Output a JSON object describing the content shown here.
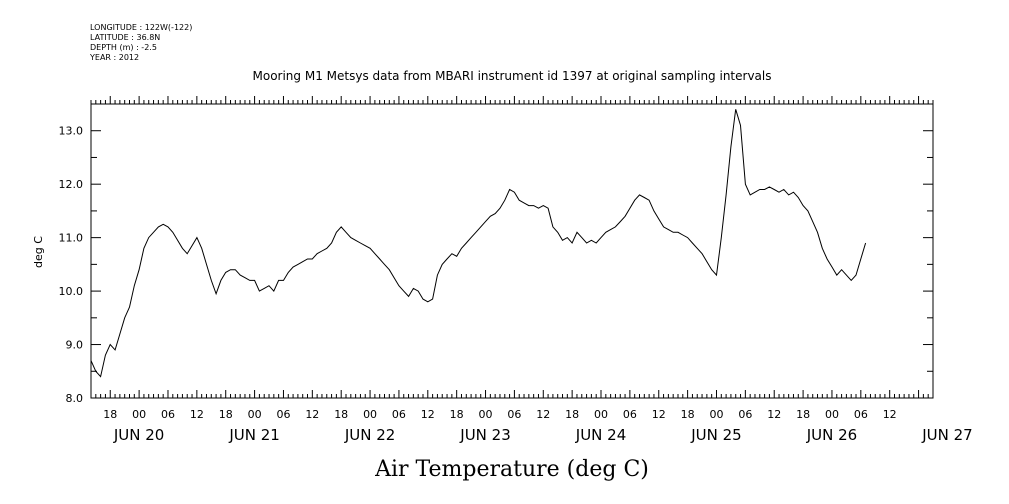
{
  "header": {
    "longitude": "LONGITUDE : 122W(-122)",
    "latitude": "LATITUDE : 36.8N",
    "depth": "DEPTH (m) : -2.5",
    "year": "YEAR : 2012"
  },
  "chart_data": {
    "type": "line",
    "title": "Mooring M1 Metsys data from MBARI instrument id 1397 at original sampling intervals",
    "ylabel": "deg C",
    "xlabel": "",
    "caption": "Air Temperature (deg C)",
    "ylim": [
      8.0,
      13.5
    ],
    "xlim_hours_from_jun20": [
      -10,
      165
    ],
    "yticks": [
      "8.0",
      "9.0",
      "10.0",
      "11.0",
      "12.0",
      "13.0"
    ],
    "xtick_labels": [
      "18",
      "00",
      "06",
      "12",
      "18",
      "00",
      "06",
      "12",
      "18",
      "00",
      "06",
      "12",
      "18",
      "00",
      "06",
      "12",
      "18",
      "00",
      "06",
      "12",
      "18",
      "00",
      "06",
      "12",
      "18",
      "00",
      "06",
      "12"
    ],
    "day_labels": [
      "JUN 20",
      "JUN 21",
      "JUN 22",
      "JUN 23",
      "JUN 24",
      "JUN 25",
      "JUN 26",
      "JUN 27"
    ],
    "grid": false,
    "series": [
      {
        "points": [
          [
            -10,
            8.7
          ],
          [
            -9,
            8.5
          ],
          [
            -8,
            8.4
          ],
          [
            -7,
            8.8
          ],
          [
            -6,
            9.0
          ],
          [
            -5,
            8.9
          ],
          [
            -4,
            9.2
          ],
          [
            -3,
            9.5
          ],
          [
            -2,
            9.7
          ],
          [
            -1,
            10.1
          ],
          [
            0,
            10.4
          ],
          [
            1,
            10.8
          ],
          [
            2,
            11.0
          ],
          [
            3,
            11.1
          ],
          [
            4,
            11.2
          ],
          [
            5,
            11.25
          ],
          [
            6,
            11.2
          ],
          [
            7,
            11.1
          ],
          [
            8,
            10.95
          ],
          [
            9,
            10.8
          ],
          [
            10,
            10.7
          ],
          [
            11,
            10.85
          ],
          [
            12,
            11.0
          ],
          [
            13,
            10.8
          ],
          [
            14,
            10.5
          ],
          [
            15,
            10.2
          ],
          [
            16,
            9.95
          ],
          [
            17,
            10.2
          ],
          [
            18,
            10.35
          ],
          [
            19,
            10.4
          ],
          [
            20,
            10.4
          ],
          [
            21,
            10.3
          ],
          [
            22,
            10.25
          ],
          [
            23,
            10.2
          ],
          [
            24,
            10.2
          ],
          [
            25,
            10.0
          ],
          [
            26,
            10.05
          ],
          [
            27,
            10.1
          ],
          [
            28,
            10.0
          ],
          [
            29,
            10.2
          ],
          [
            30,
            10.2
          ],
          [
            31,
            10.35
          ],
          [
            32,
            10.45
          ],
          [
            33,
            10.5
          ],
          [
            34,
            10.55
          ],
          [
            35,
            10.6
          ],
          [
            36,
            10.6
          ],
          [
            37,
            10.7
          ],
          [
            38,
            10.75
          ],
          [
            39,
            10.8
          ],
          [
            40,
            10.9
          ],
          [
            41,
            11.1
          ],
          [
            42,
            11.2
          ],
          [
            43,
            11.1
          ],
          [
            44,
            11.0
          ],
          [
            45,
            10.95
          ],
          [
            46,
            10.9
          ],
          [
            47,
            10.85
          ],
          [
            48,
            10.8
          ],
          [
            49,
            10.7
          ],
          [
            50,
            10.6
          ],
          [
            51,
            10.5
          ],
          [
            52,
            10.4
          ],
          [
            53,
            10.25
          ],
          [
            54,
            10.1
          ],
          [
            55,
            10.0
          ],
          [
            56,
            9.9
          ],
          [
            57,
            10.05
          ],
          [
            58,
            10.0
          ],
          [
            59,
            9.85
          ],
          [
            60,
            9.8
          ],
          [
            61,
            9.85
          ],
          [
            62,
            10.3
          ],
          [
            63,
            10.5
          ],
          [
            64,
            10.6
          ],
          [
            65,
            10.7
          ],
          [
            66,
            10.65
          ],
          [
            67,
            10.8
          ],
          [
            68,
            10.9
          ],
          [
            69,
            11.0
          ],
          [
            70,
            11.1
          ],
          [
            71,
            11.2
          ],
          [
            72,
            11.3
          ],
          [
            73,
            11.4
          ],
          [
            74,
            11.45
          ],
          [
            75,
            11.55
          ],
          [
            76,
            11.7
          ],
          [
            77,
            11.9
          ],
          [
            78,
            11.85
          ],
          [
            79,
            11.7
          ],
          [
            80,
            11.65
          ],
          [
            81,
            11.6
          ],
          [
            82,
            11.6
          ],
          [
            83,
            11.55
          ],
          [
            84,
            11.6
          ],
          [
            85,
            11.55
          ],
          [
            86,
            11.2
          ],
          [
            87,
            11.1
          ],
          [
            88,
            10.95
          ],
          [
            89,
            11.0
          ],
          [
            90,
            10.9
          ],
          [
            91,
            11.1
          ],
          [
            92,
            11.0
          ],
          [
            93,
            10.9
          ],
          [
            94,
            10.95
          ],
          [
            95,
            10.9
          ],
          [
            96,
            11.0
          ],
          [
            97,
            11.1
          ],
          [
            98,
            11.15
          ],
          [
            99,
            11.2
          ],
          [
            100,
            11.3
          ],
          [
            101,
            11.4
          ],
          [
            102,
            11.55
          ],
          [
            103,
            11.7
          ],
          [
            104,
            11.8
          ],
          [
            105,
            11.75
          ],
          [
            106,
            11.7
          ],
          [
            107,
            11.5
          ],
          [
            108,
            11.35
          ],
          [
            109,
            11.2
          ],
          [
            110,
            11.15
          ],
          [
            111,
            11.1
          ],
          [
            112,
            11.1
          ],
          [
            113,
            11.05
          ],
          [
            114,
            11.0
          ],
          [
            115,
            10.9
          ],
          [
            116,
            10.8
          ],
          [
            117,
            10.7
          ],
          [
            118,
            10.55
          ],
          [
            119,
            10.4
          ],
          [
            120,
            10.3
          ],
          [
            121,
            11.0
          ],
          [
            122,
            11.8
          ],
          [
            123,
            12.7
          ],
          [
            124,
            13.4
          ],
          [
            125,
            13.1
          ],
          [
            126,
            12.0
          ],
          [
            127,
            11.8
          ],
          [
            128,
            11.85
          ],
          [
            129,
            11.9
          ],
          [
            130,
            11.9
          ],
          [
            131,
            11.95
          ],
          [
            132,
            11.9
          ],
          [
            133,
            11.85
          ],
          [
            134,
            11.9
          ],
          [
            135,
            11.8
          ],
          [
            136,
            11.85
          ],
          [
            137,
            11.75
          ],
          [
            138,
            11.6
          ],
          [
            139,
            11.5
          ],
          [
            140,
            11.3
          ],
          [
            141,
            11.1
          ],
          [
            142,
            10.8
          ],
          [
            143,
            10.6
          ],
          [
            144,
            10.45
          ],
          [
            145,
            10.3
          ],
          [
            146,
            10.4
          ],
          [
            147,
            10.3
          ],
          [
            148,
            10.2
          ],
          [
            149,
            10.3
          ],
          [
            150,
            10.6
          ],
          [
            151,
            10.9
          ]
        ]
      }
    ]
  }
}
